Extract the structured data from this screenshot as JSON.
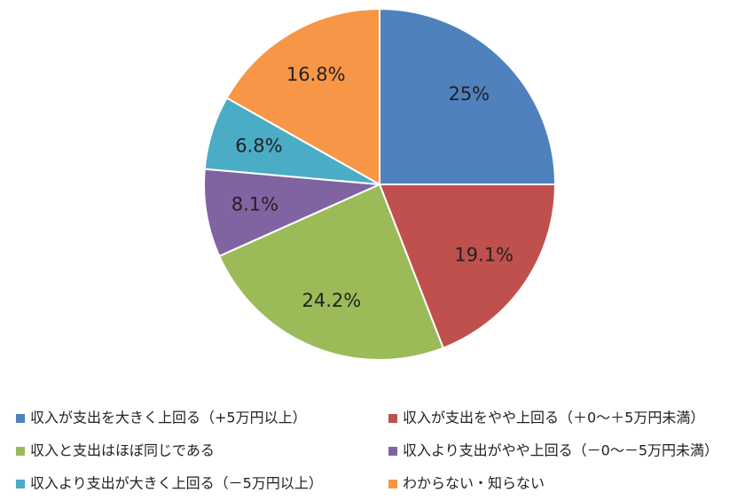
{
  "chart_data": {
    "type": "pie",
    "categories": [
      "収入が支出を大きく上回る（+5万円以上）",
      "収入が支出をやや上回る（＋0～＋5万円未満）",
      "収入と支出はほぼ同じである",
      "収入より支出がやや上回る（－0～－5万円未満）",
      "収入より支出が大きく上回る（－5万円以上）",
      "わからない・知らない"
    ],
    "values": [
      25,
      19.1,
      24.2,
      8.1,
      6.8,
      16.8
    ],
    "value_labels": [
      "25%",
      "19.1%",
      "24.2%",
      "8.1%",
      "6.8%",
      "16.8%"
    ],
    "colors": [
      "#4f81bd",
      "#c0504d",
      "#9bbb59",
      "#8064a2",
      "#4bacc6",
      "#f79646"
    ],
    "legend": "bottom"
  }
}
